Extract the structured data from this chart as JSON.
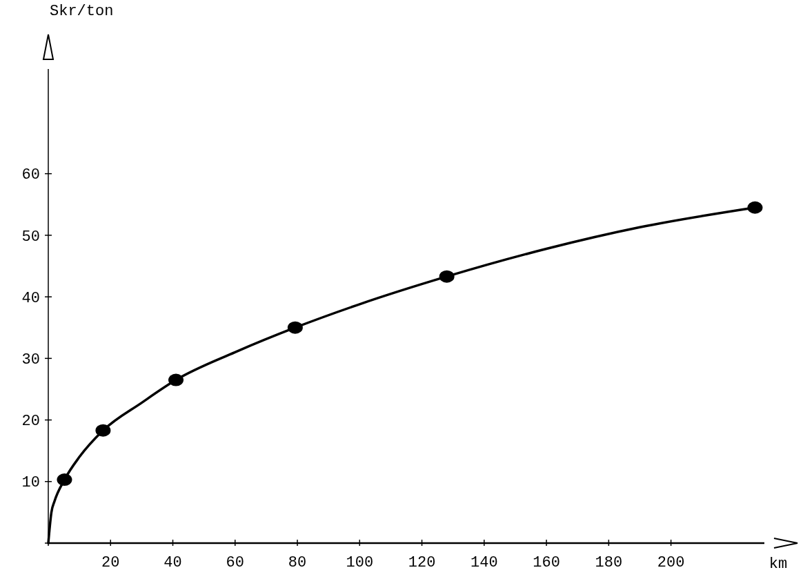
{
  "chart_data": {
    "type": "line",
    "xlabel": "km",
    "ylabel": "Skr/ton",
    "xlim": [
      0,
      230
    ],
    "ylim": [
      0,
      77
    ],
    "xticks": [
      {
        "value": 0,
        "label": null
      },
      20,
      40,
      60,
      80,
      100,
      120,
      140,
      160,
      180,
      200
    ],
    "yticks": [
      {
        "value": 0,
        "label": null
      },
      10,
      20,
      30,
      40,
      50,
      60
    ],
    "grid": false,
    "series": [
      {
        "color": "#000000",
        "marker": "none",
        "x": [
          0,
          1,
          2,
          5.2,
          10,
          17.6,
          30,
          41,
          60,
          79.3,
          100,
          128,
          160,
          190,
          227
        ],
        "values": [
          0,
          5,
          6.8,
          10.3,
          14,
          18.3,
          22.8,
          26.5,
          31,
          35,
          38.8,
          43.3,
          47.8,
          51.3,
          54.5
        ]
      },
      {
        "type": "scatter",
        "color": "#000000",
        "marker": "circle",
        "x": [
          5.2,
          17.6,
          41,
          79.3,
          128,
          227
        ],
        "values": [
          10.3,
          18.3,
          26.5,
          35,
          43.3,
          54.5
        ]
      }
    ]
  }
}
